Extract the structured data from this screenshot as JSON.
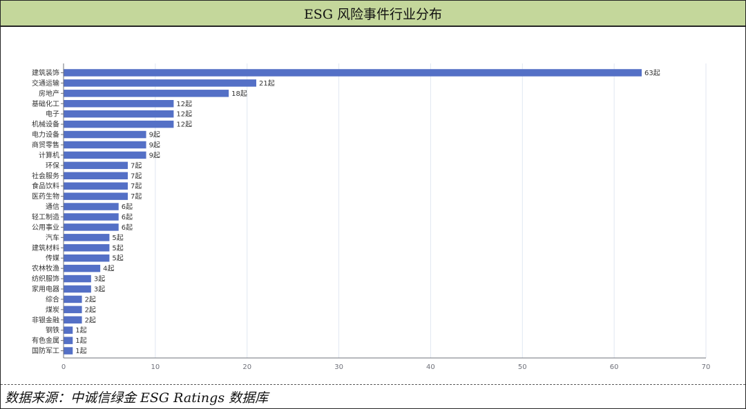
{
  "header": {
    "title": "ESG 风险事件行业分布"
  },
  "footer": {
    "source": "数据来源：中诚信绿金 ESG Ratings 数据库"
  },
  "colors": {
    "bar": "#5470c6",
    "axis": "#6e7079",
    "grid": "#e0e6f1",
    "title_bg": "#c4d79b"
  },
  "chart_data": {
    "type": "bar",
    "orientation": "horizontal",
    "categories": [
      "建筑装饰",
      "交通运输",
      "房地产",
      "基础化工",
      "电子",
      "机械设备",
      "电力设备",
      "商贸零售",
      "计算机",
      "环保",
      "社会服务",
      "食品饮料",
      "医药生物",
      "通信",
      "轻工制造",
      "公用事业",
      "汽车",
      "建筑材料",
      "传媒",
      "农林牧渔",
      "纺织服饰",
      "家用电器",
      "综合",
      "煤炭",
      "非银金融",
      "钢铁",
      "有色金属",
      "国防军工"
    ],
    "values": [
      63,
      21,
      18,
      12,
      12,
      12,
      9,
      9,
      9,
      7,
      7,
      7,
      7,
      6,
      6,
      6,
      5,
      5,
      5,
      4,
      3,
      3,
      2,
      2,
      2,
      1,
      1,
      1
    ],
    "value_suffix": "起",
    "xlim": [
      0,
      70
    ],
    "xticks": [
      0,
      10,
      20,
      30,
      40,
      50,
      60,
      70
    ],
    "grid": true,
    "title": "",
    "xlabel": "",
    "ylabel": ""
  }
}
